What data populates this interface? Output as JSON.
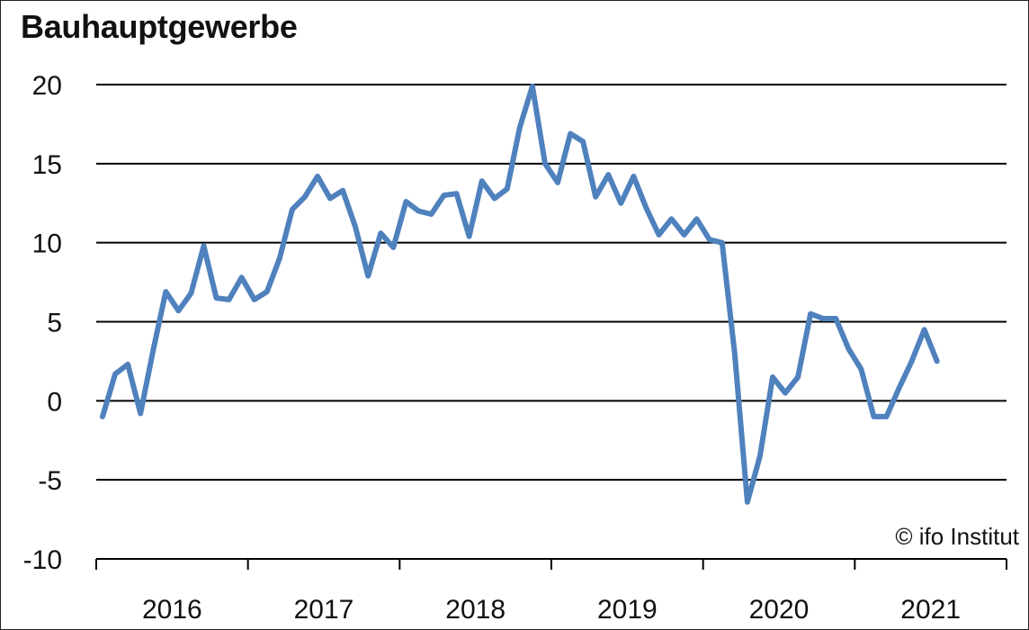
{
  "chart_data": {
    "type": "line",
    "title": "Bauhauptgewerbe",
    "xlabel": "",
    "ylabel": "",
    "ylim": [
      -10,
      20
    ],
    "yticks": [
      20,
      15,
      10,
      5,
      0,
      -5,
      -10
    ],
    "year_labels": [
      "2016",
      "2017",
      "2018",
      "2019",
      "2020",
      "2021"
    ],
    "grid": "horizontal",
    "source": "© ifo Institut",
    "series": [
      {
        "color": "#4F81BD",
        "values": [
          -1.0,
          1.7,
          2.3,
          -0.8,
          3.2,
          6.9,
          5.7,
          6.8,
          9.8,
          6.5,
          6.4,
          7.8,
          6.4,
          6.9,
          9.0,
          12.1,
          12.9,
          14.2,
          12.8,
          13.3,
          11.0,
          7.9,
          10.6,
          9.7,
          12.6,
          12.0,
          11.8,
          13.0,
          13.1,
          10.4,
          13.9,
          12.8,
          13.4,
          17.3,
          19.9,
          15.0,
          13.8,
          16.9,
          16.4,
          12.9,
          14.3,
          12.5,
          14.2,
          12.2,
          10.5,
          11.5,
          10.5,
          11.5,
          10.2,
          10.0,
          3.0,
          -6.4,
          -3.5,
          1.5,
          0.5,
          1.5,
          5.5,
          5.2,
          5.2,
          3.3,
          2.0,
          -1.0,
          -1.0,
          0.8,
          2.5,
          4.5,
          2.5
        ]
      }
    ]
  }
}
